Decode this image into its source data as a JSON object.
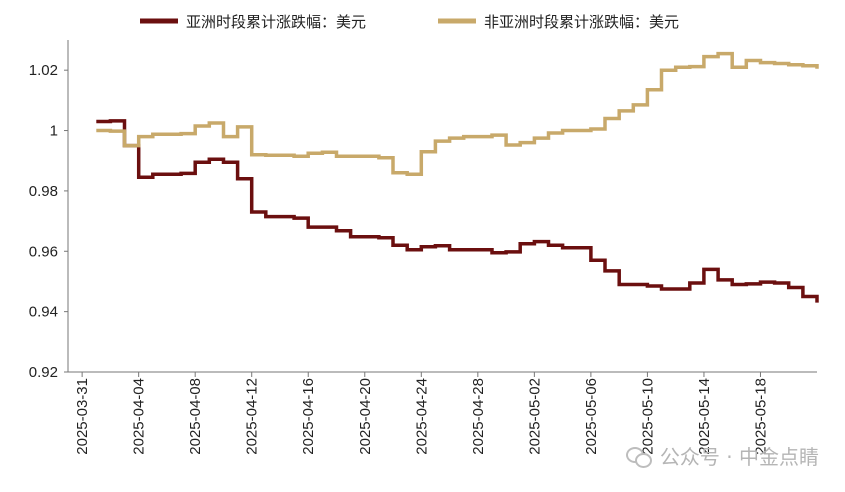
{
  "chart_data": {
    "type": "line",
    "title": "",
    "xlabel": "",
    "ylabel": "",
    "ylim": [
      0.92,
      1.03
    ],
    "yticks": [
      "0.92",
      "0.94",
      "0.96",
      "0.98",
      "1",
      "1.02"
    ],
    "xticks": [
      "2025-03-31",
      "2025-04-04",
      "2025-04-08",
      "2025-04-12",
      "2025-04-16",
      "2025-04-20",
      "2025-04-24",
      "2025-04-28",
      "2025-05-02",
      "2025-05-06",
      "2025-05-10",
      "2025-05-14",
      "2025-05-18"
    ],
    "xrange": [
      "2025-03-30",
      "2025-05-22"
    ],
    "grid": false,
    "legend": "top",
    "series": [
      {
        "name": "亚洲时段累计涨跌幅：美元",
        "color": "#6b0f0f",
        "points": [
          [
            "2025-04-01",
            1.003
          ],
          [
            "2025-04-02",
            1.0032
          ],
          [
            "2025-04-03",
            0.995
          ],
          [
            "2025-04-04",
            0.9845
          ],
          [
            "2025-04-05",
            0.9855
          ],
          [
            "2025-04-07",
            0.9858
          ],
          [
            "2025-04-08",
            0.9895
          ],
          [
            "2025-04-09",
            0.9905
          ],
          [
            "2025-04-10",
            0.9895
          ],
          [
            "2025-04-11",
            0.984
          ],
          [
            "2025-04-12",
            0.973
          ],
          [
            "2025-04-13",
            0.9715
          ],
          [
            "2025-04-15",
            0.971
          ],
          [
            "2025-04-16",
            0.968
          ],
          [
            "2025-04-17",
            0.968
          ],
          [
            "2025-04-18",
            0.9668
          ],
          [
            "2025-04-19",
            0.9648
          ],
          [
            "2025-04-21",
            0.9645
          ],
          [
            "2025-04-22",
            0.962
          ],
          [
            "2025-04-23",
            0.9605
          ],
          [
            "2025-04-24",
            0.9615
          ],
          [
            "2025-04-25",
            0.9618
          ],
          [
            "2025-04-26",
            0.9605
          ],
          [
            "2025-04-28",
            0.9605
          ],
          [
            "2025-04-29",
            0.9595
          ],
          [
            "2025-04-30",
            0.9598
          ],
          [
            "2025-05-01",
            0.9625
          ],
          [
            "2025-05-02",
            0.9632
          ],
          [
            "2025-05-03",
            0.962
          ],
          [
            "2025-05-04",
            0.9612
          ],
          [
            "2025-05-05",
            0.9612
          ],
          [
            "2025-05-06",
            0.957
          ],
          [
            "2025-05-07",
            0.9535
          ],
          [
            "2025-05-08",
            0.949
          ],
          [
            "2025-05-09",
            0.949
          ],
          [
            "2025-05-10",
            0.9485
          ],
          [
            "2025-05-11",
            0.9475
          ],
          [
            "2025-05-12",
            0.9475
          ],
          [
            "2025-05-13",
            0.9495
          ],
          [
            "2025-05-14",
            0.954
          ],
          [
            "2025-05-15",
            0.9505
          ],
          [
            "2025-05-16",
            0.949
          ],
          [
            "2025-05-17",
            0.9492
          ],
          [
            "2025-05-18",
            0.9498
          ],
          [
            "2025-05-19",
            0.9495
          ],
          [
            "2025-05-20",
            0.948
          ],
          [
            "2025-05-21",
            0.945
          ],
          [
            "2025-05-22",
            0.943
          ]
        ]
      },
      {
        "name": "非亚洲时段累计涨跌幅：美元",
        "color": "#c8a96a",
        "points": [
          [
            "2025-04-01",
            1.0
          ],
          [
            "2025-04-02",
            0.9998
          ],
          [
            "2025-04-03",
            0.995
          ],
          [
            "2025-04-04",
            0.998
          ],
          [
            "2025-04-05",
            0.9988
          ],
          [
            "2025-04-07",
            0.999
          ],
          [
            "2025-04-08",
            1.0015
          ],
          [
            "2025-04-09",
            1.0025
          ],
          [
            "2025-04-10",
            0.998
          ],
          [
            "2025-04-11",
            1.0012
          ],
          [
            "2025-04-12",
            0.992
          ],
          [
            "2025-04-13",
            0.9918
          ],
          [
            "2025-04-15",
            0.9915
          ],
          [
            "2025-04-16",
            0.9925
          ],
          [
            "2025-04-17",
            0.9928
          ],
          [
            "2025-04-18",
            0.9915
          ],
          [
            "2025-04-19",
            0.9915
          ],
          [
            "2025-04-21",
            0.991
          ],
          [
            "2025-04-22",
            0.986
          ],
          [
            "2025-04-23",
            0.9855
          ],
          [
            "2025-04-24",
            0.993
          ],
          [
            "2025-04-25",
            0.9965
          ],
          [
            "2025-04-26",
            0.9975
          ],
          [
            "2025-04-27",
            0.998
          ],
          [
            "2025-04-29",
            0.9985
          ],
          [
            "2025-04-30",
            0.9952
          ],
          [
            "2025-05-01",
            0.996
          ],
          [
            "2025-05-02",
            0.9975
          ],
          [
            "2025-05-03",
            0.9992
          ],
          [
            "2025-05-04",
            1.0
          ],
          [
            "2025-05-06",
            1.0005
          ],
          [
            "2025-05-07",
            1.004
          ],
          [
            "2025-05-08",
            1.0065
          ],
          [
            "2025-05-09",
            1.0085
          ],
          [
            "2025-05-10",
            1.0135
          ],
          [
            "2025-05-11",
            1.02
          ],
          [
            "2025-05-12",
            1.021
          ],
          [
            "2025-05-13",
            1.0212
          ],
          [
            "2025-05-14",
            1.0245
          ],
          [
            "2025-05-15",
            1.0255
          ],
          [
            "2025-05-16",
            1.021
          ],
          [
            "2025-05-17",
            1.0232
          ],
          [
            "2025-05-18",
            1.0225
          ],
          [
            "2025-05-19",
            1.0222
          ],
          [
            "2025-05-20",
            1.0218
          ],
          [
            "2025-05-21",
            1.0215
          ],
          [
            "2025-05-22",
            1.0205
          ]
        ]
      }
    ]
  },
  "watermark": {
    "text": "公众号 · 中金点睛"
  }
}
